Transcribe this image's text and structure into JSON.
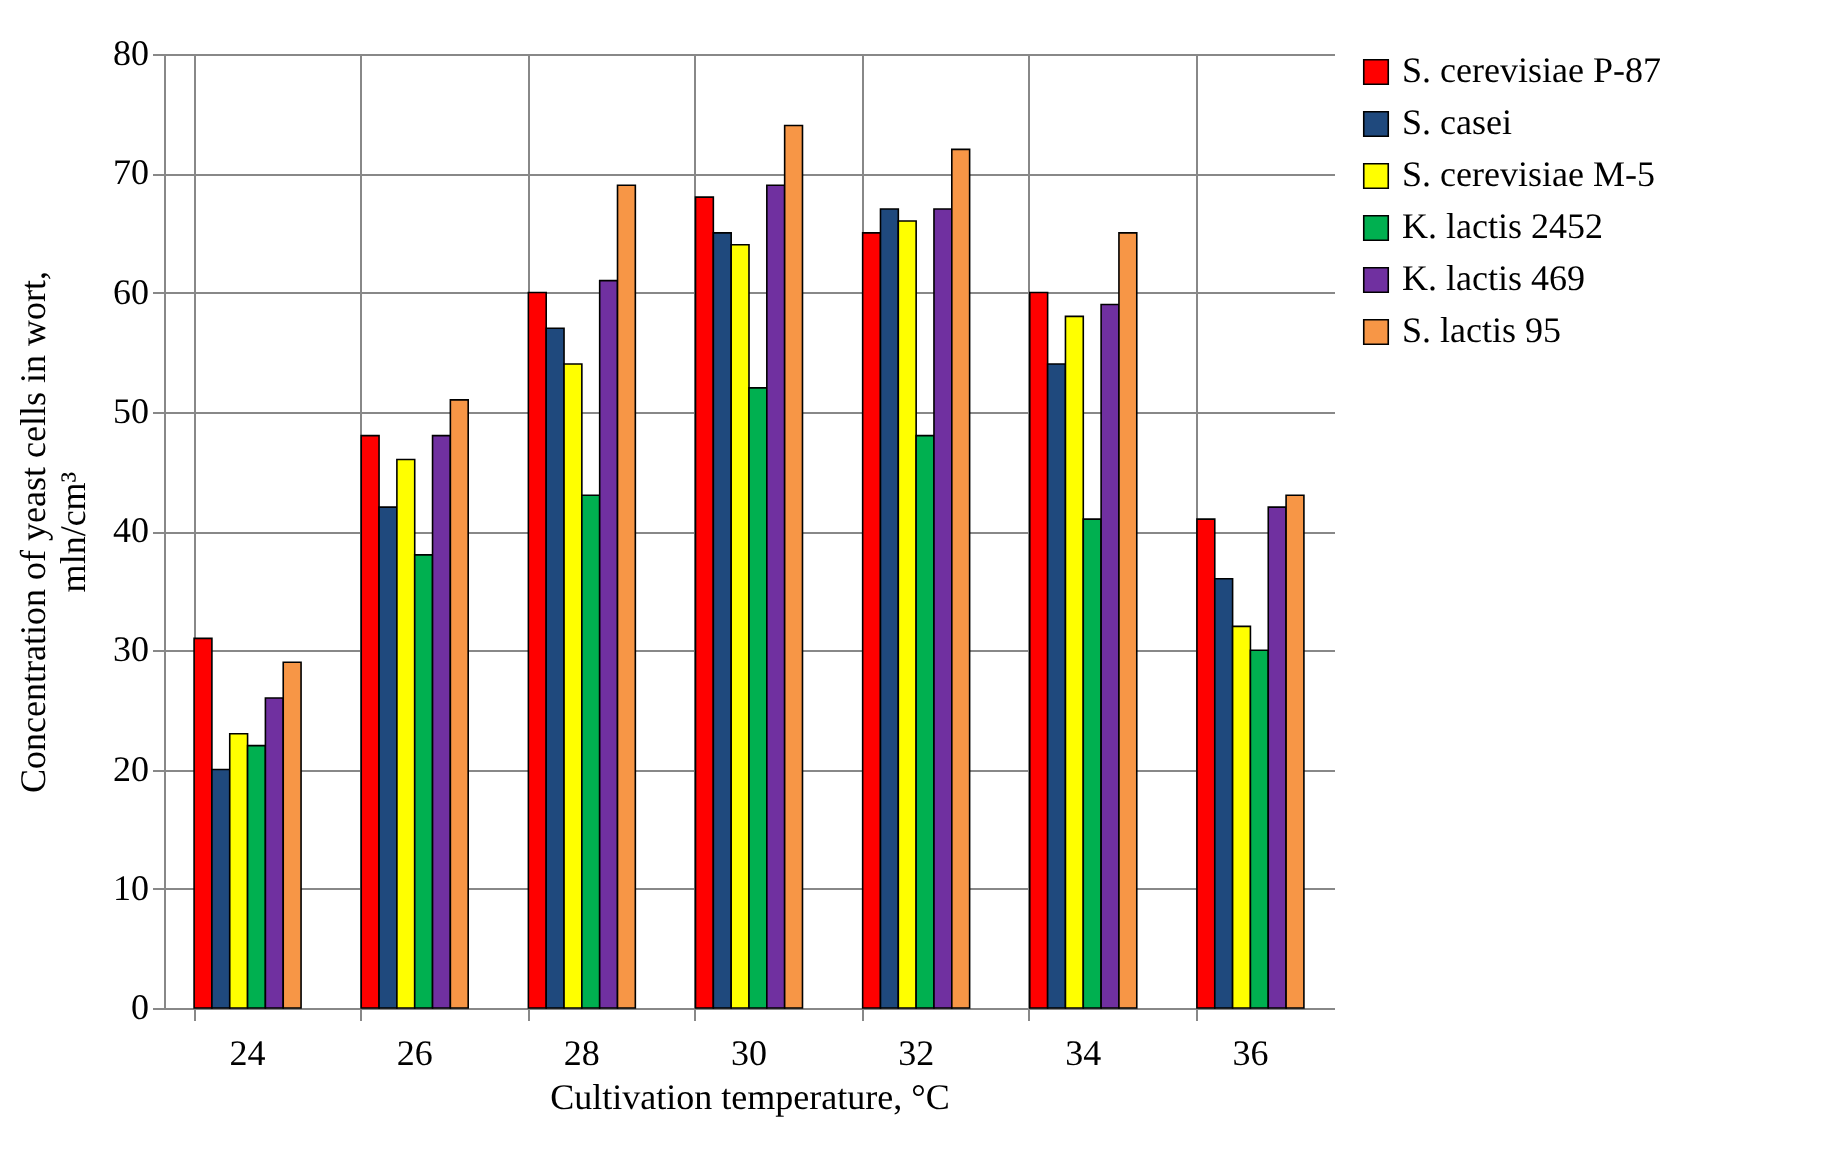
{
  "chart_data": {
    "type": "bar",
    "xlabel": "Cultivation temperature, °C",
    "ylabel": "Concentration of yeast cells in wort, mln/cm³",
    "categories": [
      "24",
      "26",
      "28",
      "30",
      "32",
      "34",
      "36"
    ],
    "series": [
      {
        "name": "S. cerevisiae P-87",
        "color": "#ff0000",
        "values": [
          31,
          48,
          60,
          68,
          65,
          60,
          41
        ]
      },
      {
        "name": "S. casei",
        "color": "#1f497d",
        "values": [
          20,
          42,
          57,
          65,
          67,
          54,
          36
        ]
      },
      {
        "name": "S. cerevisiae M-5",
        "color": "#ffff00",
        "values": [
          23,
          46,
          54,
          64,
          66,
          58,
          32
        ]
      },
      {
        "name": "K. lactis 2452",
        "color": "#00b050",
        "values": [
          22,
          38,
          43,
          52,
          48,
          41,
          30
        ]
      },
      {
        "name": "K. lactis 469",
        "color": "#7030a0",
        "values": [
          26,
          48,
          61,
          69,
          67,
          59,
          42
        ]
      },
      {
        "name": "S. lactis 95",
        "color": "#f79646",
        "values": [
          29,
          51,
          69,
          74,
          72,
          65,
          43
        ]
      }
    ],
    "ylim": [
      0,
      80
    ],
    "yticks": [
      0,
      10,
      20,
      30,
      40,
      50,
      60,
      70,
      80
    ],
    "grid": true,
    "legend": "right"
  }
}
